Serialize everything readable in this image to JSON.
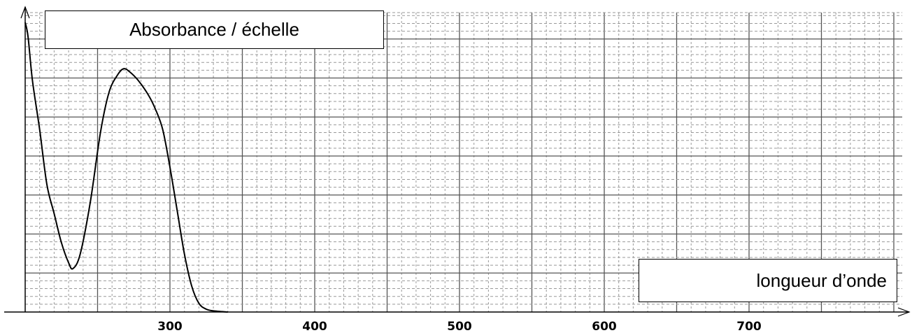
{
  "chart_data": {
    "type": "line",
    "ylabel": "Absorbance / échelle",
    "xlabel": "longueur d’onde",
    "xlim": [
      200,
      800
    ],
    "ylim": [
      0,
      1
    ],
    "x_ticks": [
      300,
      400,
      500,
      600,
      700
    ],
    "y_ticks_shown": false,
    "grid": true,
    "series": [
      {
        "x": [
          200,
          202,
          205,
          210,
          215,
          220,
          225,
          230,
          233,
          238,
          245,
          252,
          258,
          264,
          268,
          272,
          278,
          285,
          290,
          295,
          300,
          305,
          310,
          315,
          320,
          325,
          330,
          340
        ],
        "y": [
          1.0,
          0.95,
          0.8,
          0.63,
          0.44,
          0.34,
          0.24,
          0.17,
          0.15,
          0.2,
          0.38,
          0.62,
          0.76,
          0.82,
          0.84,
          0.83,
          0.8,
          0.75,
          0.7,
          0.63,
          0.5,
          0.35,
          0.2,
          0.09,
          0.03,
          0.01,
          0.004,
          0.0
        ]
      }
    ]
  }
}
